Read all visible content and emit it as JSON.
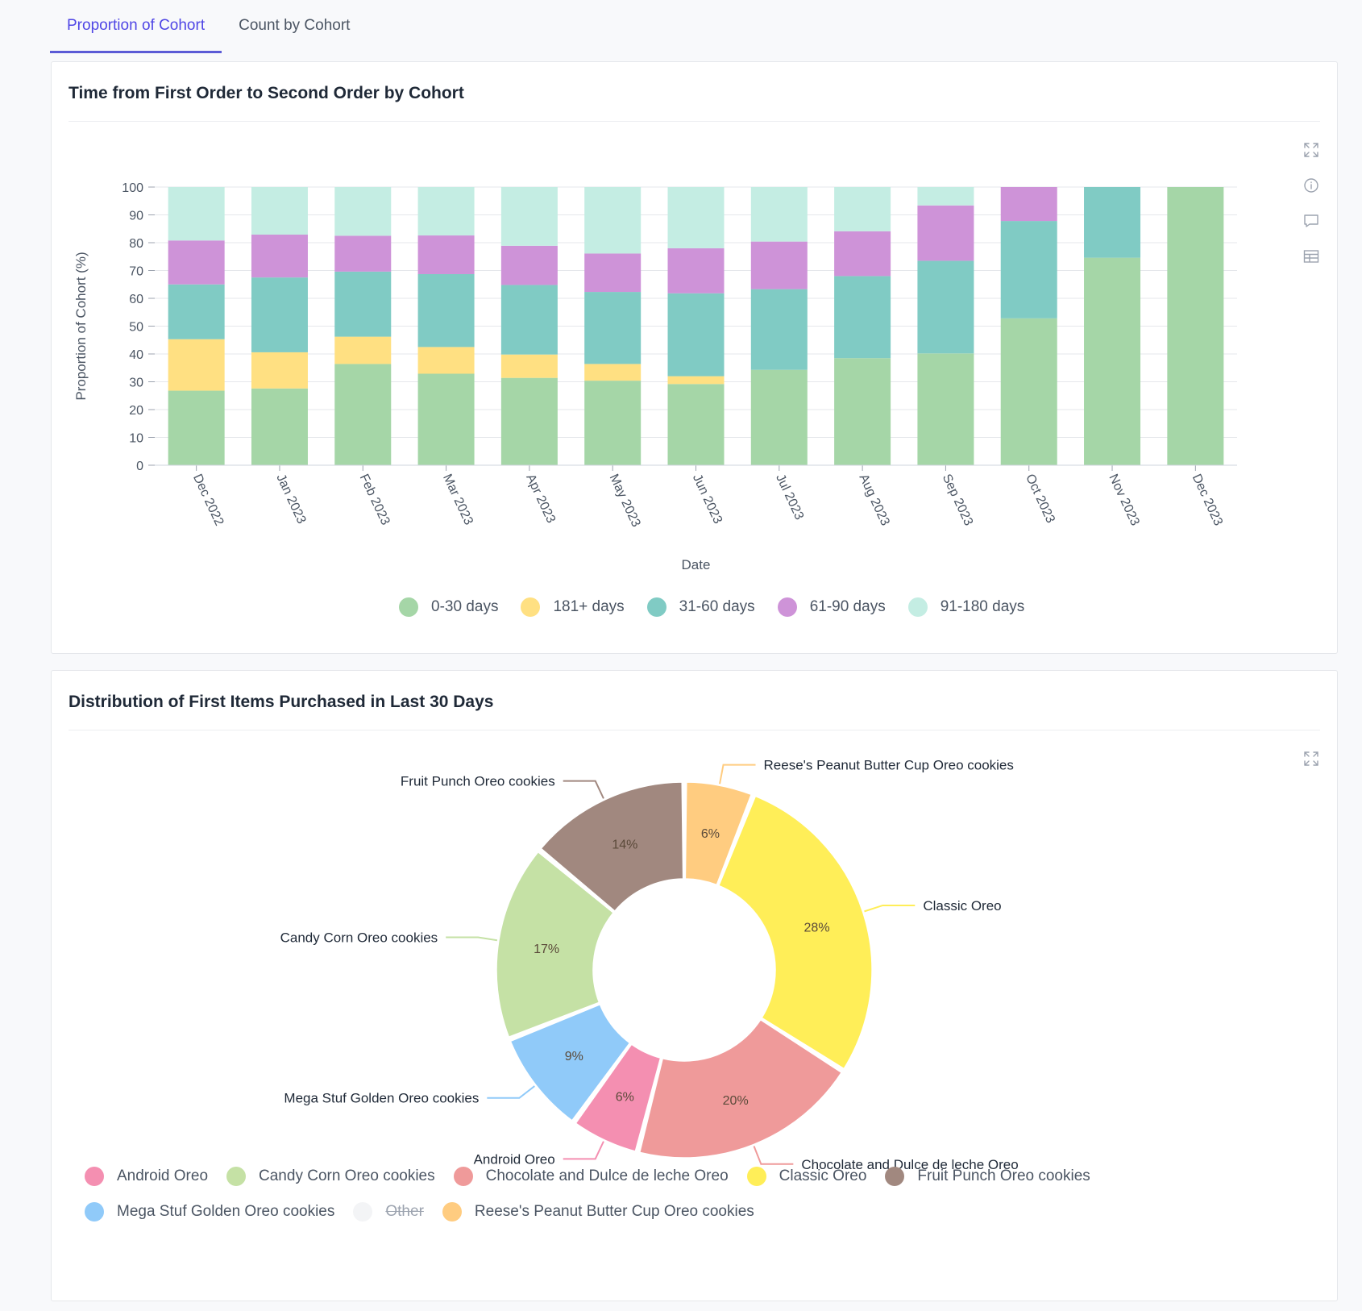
{
  "tabs": [
    {
      "label": "Proportion of Cohort",
      "active": true
    },
    {
      "label": "Count by Cohort",
      "active": false
    }
  ],
  "icons": {
    "expand": "expand-icon",
    "info": "info-icon",
    "comment": "comment-icon",
    "table": "table-icon"
  },
  "chart_data": [
    {
      "type": "bar",
      "stacked": true,
      "title": "Time from First Order to Second Order by Cohort",
      "xlabel": "Date",
      "ylabel": "Proportion of Cohort (%)",
      "ylim": [
        0,
        100
      ],
      "yticks": [
        0,
        10,
        20,
        30,
        40,
        50,
        60,
        70,
        80,
        90,
        100
      ],
      "grid": true,
      "legend_position": "bottom",
      "categories": [
        "Dec 2022",
        "Jan 2023",
        "Feb 2023",
        "Mar 2023",
        "Apr 2023",
        "May 2023",
        "Jun 2023",
        "Jul 2023",
        "Aug 2023",
        "Sep 2023",
        "Oct 2023",
        "Nov 2023",
        "Dec 2023"
      ],
      "series": [
        {
          "name": "0-30 days",
          "color": "#a5d6a7",
          "values": [
            26.8,
            27.6,
            36.4,
            32.9,
            31.4,
            30.4,
            29.2,
            34.3,
            38.5,
            40.2,
            52.8,
            74.6,
            100
          ]
        },
        {
          "name": "181+ days",
          "color": "#ffe082",
          "values": [
            18.5,
            13.0,
            9.8,
            9.6,
            8.4,
            6.0,
            2.8,
            0,
            0,
            0,
            0,
            0,
            0
          ]
        },
        {
          "name": "31-60 days",
          "color": "#80cbc4",
          "values": [
            19.7,
            26.9,
            23.4,
            26.2,
            25.0,
            25.9,
            29.8,
            29.0,
            29.5,
            33.3,
            35.0,
            25.4,
            0
          ]
        },
        {
          "name": "61-90 days",
          "color": "#ce93d8",
          "values": [
            15.8,
            15.4,
            12.9,
            13.9,
            14.1,
            13.8,
            16.2,
            17.1,
            16.1,
            19.9,
            12.2,
            0,
            0
          ]
        },
        {
          "name": "91-180 days",
          "color": "#c4ede3",
          "values": [
            19.2,
            17.1,
            17.5,
            17.4,
            21.1,
            23.9,
            22.0,
            19.6,
            15.9,
            6.6,
            0,
            0,
            0
          ]
        }
      ]
    },
    {
      "type": "pie",
      "donut": true,
      "title": "Distribution of First Items Purchased in Last 30 Days",
      "legend_position": "bottom",
      "slices": [
        {
          "name": "Reese's Peanut Butter Cup Oreo cookies",
          "value": 6,
          "label": "6%",
          "color": "#ffcc80"
        },
        {
          "name": "Classic Oreo",
          "value": 28,
          "label": "28%",
          "color": "#ffee58"
        },
        {
          "name": "Chocolate and Dulce de leche Oreo",
          "value": 20,
          "label": "20%",
          "color": "#ef9a9a"
        },
        {
          "name": "Android Oreo",
          "value": 6,
          "label": "6%",
          "color": "#f48fb1"
        },
        {
          "name": "Mega Stuf Golden Oreo cookies",
          "value": 9,
          "label": "9%",
          "color": "#90caf9"
        },
        {
          "name": "Candy Corn Oreo cookies",
          "value": 17,
          "label": "17%",
          "color": "#c5e1a5"
        },
        {
          "name": "Fruit Punch Oreo cookies",
          "value": 14,
          "label": "14%",
          "color": "#a1887f"
        }
      ],
      "legend": [
        {
          "name": "Android Oreo",
          "color": "#f48fb1",
          "enabled": true
        },
        {
          "name": "Candy Corn Oreo cookies",
          "color": "#c5e1a5",
          "enabled": true
        },
        {
          "name": "Chocolate and Dulce de leche Oreo",
          "color": "#ef9a9a",
          "enabled": true
        },
        {
          "name": "Classic Oreo",
          "color": "#ffee58",
          "enabled": true
        },
        {
          "name": "Fruit Punch Oreo cookies",
          "color": "#a1887f",
          "enabled": true
        },
        {
          "name": "Mega Stuf Golden Oreo cookies",
          "color": "#90caf9",
          "enabled": true
        },
        {
          "name": "Other",
          "color": "#f3f4f6",
          "enabled": false
        },
        {
          "name": "Reese's Peanut Butter Cup Oreo cookies",
          "color": "#ffcc80",
          "enabled": true
        }
      ]
    }
  ]
}
